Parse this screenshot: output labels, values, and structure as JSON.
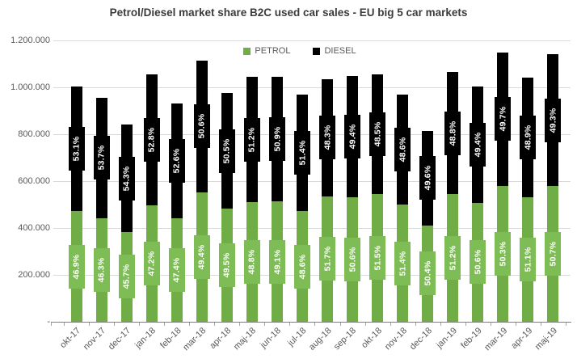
{
  "title": "Petrol/Diesel market share B2C used car sales - EU big 5 car markets",
  "legend": {
    "petrol": "PETROL",
    "diesel": "DIESEL"
  },
  "colors": {
    "petrol_bar": "#70AD47",
    "petrol_label_bg": "#7EBC55",
    "diesel_bar": "#000000",
    "diesel_label_bg": "#000000",
    "gridline": "#D9D9D9",
    "axis_line": "#808080",
    "axis_text": "#595959",
    "title_text": "#3B3B3B",
    "label_text": "#FFFFFF"
  },
  "chart_data": {
    "type": "bar",
    "stacked": true,
    "title": "Petrol/Diesel market share B2C used car sales - EU big 5 car markets",
    "xlabel": "",
    "ylabel": "",
    "ylim": [
      0,
      1200000
    ],
    "grid": true,
    "legend_position": "top",
    "categories": [
      "okt-17",
      "nov-17",
      "dec-17",
      "jan-18",
      "feb-18",
      "mar-18",
      "apr-18",
      "maj-18",
      "jun-18",
      "jul-18",
      "aug-18",
      "sep-18",
      "okt-18",
      "nov-18",
      "dec-18",
      "jan-19",
      "feb-19",
      "mar-19",
      "apr-19",
      "maj-19"
    ],
    "series": [
      {
        "name": "PETROL",
        "share_pct": [
          46.9,
          46.3,
          45.7,
          47.2,
          47.4,
          49.4,
          49.5,
          48.8,
          49.1,
          48.6,
          51.7,
          50.6,
          51.5,
          51.4,
          50.4,
          51.2,
          50.6,
          50.3,
          51.1,
          50.7
        ],
        "labels": [
          "46.9%",
          "46.3%",
          "45.7%",
          "47.2%",
          "47.4%",
          "49.4%",
          "49.5%",
          "48.8%",
          "49.1%",
          "48.6%",
          "51.7%",
          "50.6%",
          "51.5%",
          "51.4%",
          "50.4%",
          "51.2%",
          "50.6%",
          "50.3%",
          "51.1%",
          "50.7%"
        ]
      },
      {
        "name": "DIESEL",
        "share_pct": [
          53.1,
          53.7,
          54.3,
          52.8,
          52.6,
          50.6,
          50.5,
          51.2,
          50.9,
          51.4,
          48.3,
          49.4,
          48.5,
          48.6,
          49.6,
          48.8,
          49.4,
          49.7,
          48.9,
          49.3
        ],
        "labels": [
          "53.1%",
          "53.7%",
          "54.3%",
          "52.8%",
          "52.6%",
          "50.6%",
          "50.5%",
          "51.2%",
          "50.9%",
          "51.4%",
          "48.3%",
          "49.4%",
          "48.5%",
          "48.6%",
          "49.6%",
          "48.8%",
          "49.4%",
          "49.7%",
          "48.9%",
          "49.3%"
        ]
      }
    ],
    "totals_estimated": [
      1005000,
      955000,
      840000,
      1055000,
      930000,
      1115000,
      975000,
      1045000,
      1045000,
      970000,
      1035000,
      1050000,
      1055000,
      970000,
      815000,
      1065000,
      1005000,
      1150000,
      1040000,
      1140000
    ],
    "y_ticks": [
      {
        "label": "1.200.000",
        "value": 1200000
      },
      {
        "label": "1.000.000",
        "value": 1000000
      },
      {
        "label": "800.000",
        "value": 800000
      },
      {
        "label": "600.000",
        "value": 600000
      },
      {
        "label": "400.000",
        "value": 400000
      },
      {
        "label": "200.000",
        "value": 200000
      },
      {
        "label": "-",
        "value": 0
      }
    ]
  }
}
